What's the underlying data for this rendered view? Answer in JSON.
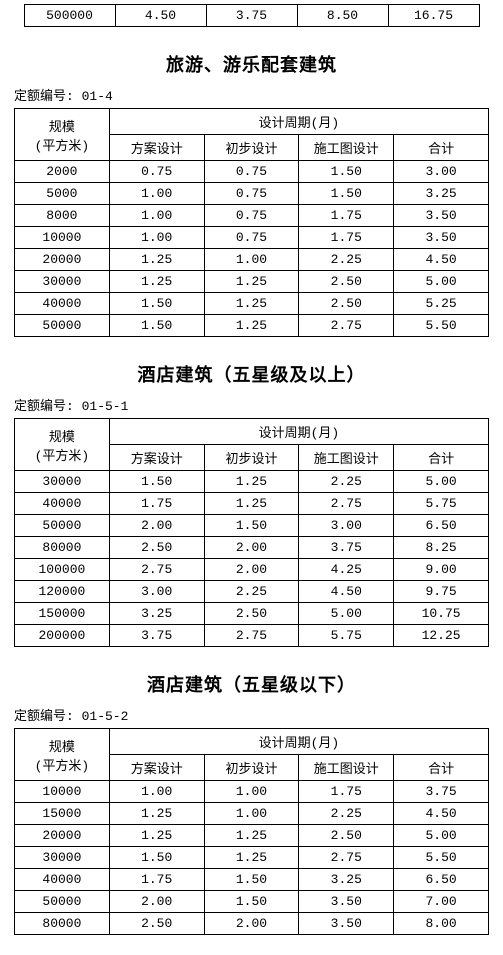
{
  "orphan_row": [
    "500000",
    "4.50",
    "3.75",
    "8.50",
    "16.75"
  ],
  "sections": [
    {
      "title": "旅游、游乐配套建筑",
      "quota_label": "定额编号: 01-4",
      "header_scale_l1": "规模",
      "header_scale_l2": "(平方米)",
      "header_period": "设计周期(月)",
      "cols": [
        "方案设计",
        "初步设计",
        "施工图设计",
        "合计"
      ],
      "rows": [
        [
          "2000",
          "0.75",
          "0.75",
          "1.50",
          "3.00"
        ],
        [
          "5000",
          "1.00",
          "0.75",
          "1.50",
          "3.25"
        ],
        [
          "8000",
          "1.00",
          "0.75",
          "1.75",
          "3.50"
        ],
        [
          "10000",
          "1.00",
          "0.75",
          "1.75",
          "3.50"
        ],
        [
          "20000",
          "1.25",
          "1.00",
          "2.25",
          "4.50"
        ],
        [
          "30000",
          "1.25",
          "1.25",
          "2.50",
          "5.00"
        ],
        [
          "40000",
          "1.50",
          "1.25",
          "2.50",
          "5.25"
        ],
        [
          "50000",
          "1.50",
          "1.25",
          "2.75",
          "5.50"
        ]
      ]
    },
    {
      "title": "酒店建筑（五星级及以上）",
      "quota_label": "定额编号: 01-5-1",
      "header_scale_l1": "规模",
      "header_scale_l2": "(平方米)",
      "header_period": "设计周期(月)",
      "cols": [
        "方案设计",
        "初步设计",
        "施工图设计",
        "合计"
      ],
      "rows": [
        [
          "30000",
          "1.50",
          "1.25",
          "2.25",
          "5.00"
        ],
        [
          "40000",
          "1.75",
          "1.25",
          "2.75",
          "5.75"
        ],
        [
          "50000",
          "2.00",
          "1.50",
          "3.00",
          "6.50"
        ],
        [
          "80000",
          "2.50",
          "2.00",
          "3.75",
          "8.25"
        ],
        [
          "100000",
          "2.75",
          "2.00",
          "4.25",
          "9.00"
        ],
        [
          "120000",
          "3.00",
          "2.25",
          "4.50",
          "9.75"
        ],
        [
          "150000",
          "3.25",
          "2.50",
          "5.00",
          "10.75"
        ],
        [
          "200000",
          "3.75",
          "2.75",
          "5.75",
          "12.25"
        ]
      ]
    },
    {
      "title": "酒店建筑（五星级以下）",
      "quota_label": "定额编号: 01-5-2",
      "header_scale_l1": "规模",
      "header_scale_l2": "(平方米)",
      "header_period": "设计周期(月)",
      "cols": [
        "方案设计",
        "初步设计",
        "施工图设计",
        "合计"
      ],
      "rows": [
        [
          "10000",
          "1.00",
          "1.00",
          "1.75",
          "3.75"
        ],
        [
          "15000",
          "1.25",
          "1.00",
          "2.25",
          "4.50"
        ],
        [
          "20000",
          "1.25",
          "1.25",
          "2.50",
          "5.00"
        ],
        [
          "30000",
          "1.50",
          "1.25",
          "2.75",
          "5.50"
        ],
        [
          "40000",
          "1.75",
          "1.50",
          "3.25",
          "6.50"
        ],
        [
          "50000",
          "2.00",
          "1.50",
          "3.50",
          "7.00"
        ],
        [
          "80000",
          "2.50",
          "2.00",
          "3.50",
          "8.00"
        ]
      ]
    }
  ]
}
